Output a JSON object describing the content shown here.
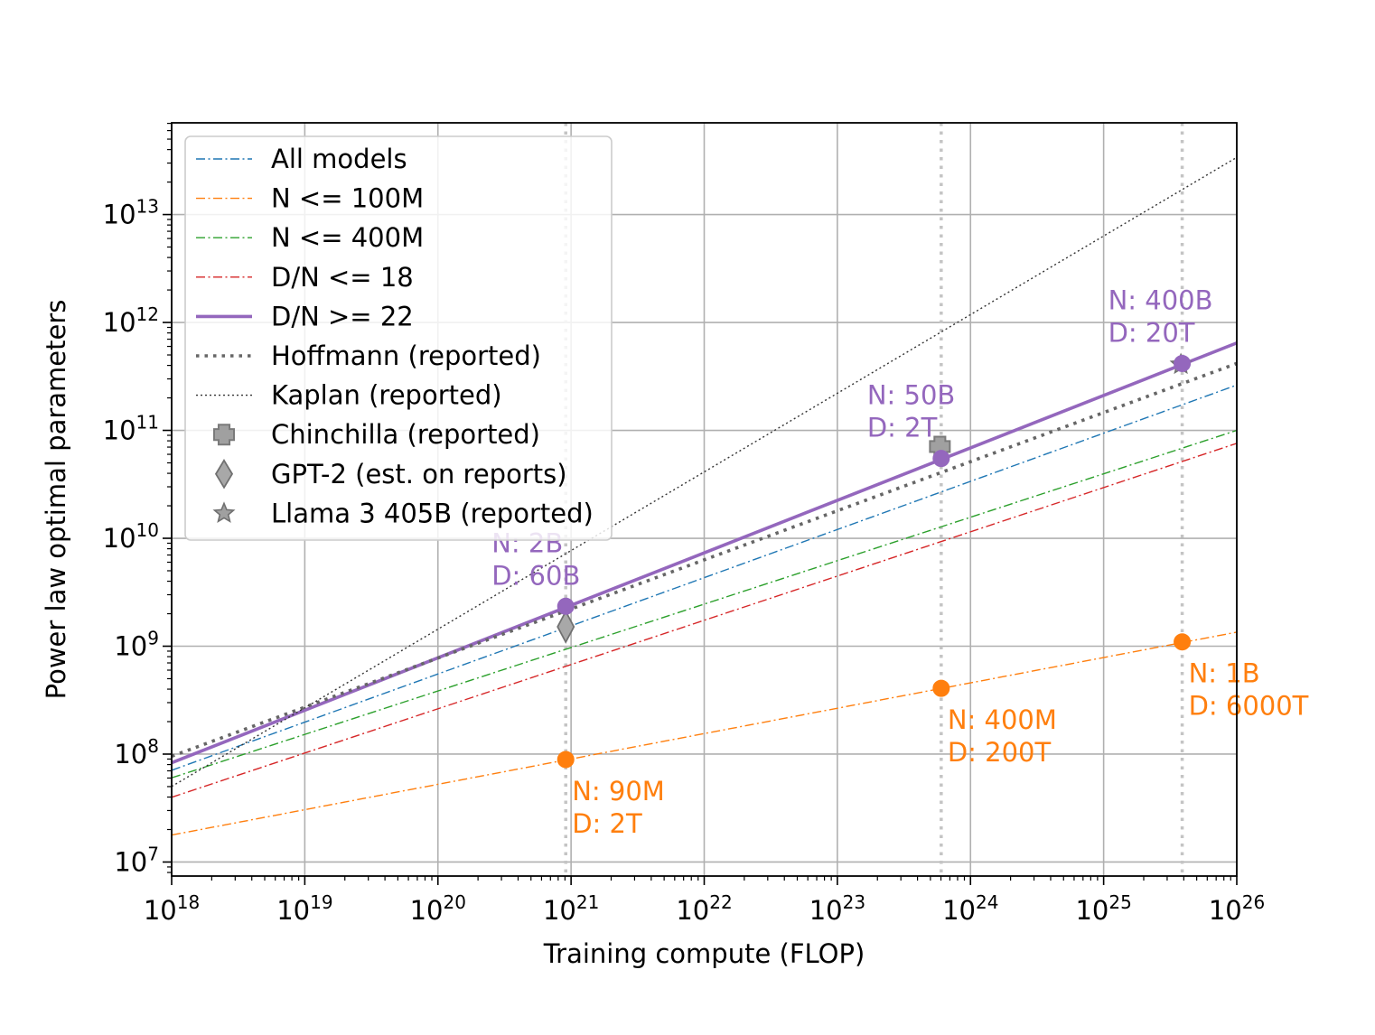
{
  "chart_data": {
    "type": "line",
    "scale": "log-log",
    "xlabel": "Training compute (FLOP)",
    "ylabel": "Power law optimal parameters",
    "xlim_exp": [
      18,
      26
    ],
    "ylim_exp": [
      6.87,
      13.85
    ],
    "x_ticks": [
      {
        "base": "10",
        "exp": "18",
        "value_exp": 18
      },
      {
        "base": "10",
        "exp": "19",
        "value_exp": 19
      },
      {
        "base": "10",
        "exp": "20",
        "value_exp": 20
      },
      {
        "base": "10",
        "exp": "21",
        "value_exp": 21
      },
      {
        "base": "10",
        "exp": "22",
        "value_exp": 22
      },
      {
        "base": "10",
        "exp": "23",
        "value_exp": 23
      },
      {
        "base": "10",
        "exp": "24",
        "value_exp": 24
      },
      {
        "base": "10",
        "exp": "25",
        "value_exp": 25
      },
      {
        "base": "10",
        "exp": "26",
        "value_exp": 26
      }
    ],
    "y_ticks": [
      {
        "base": "10",
        "exp": "7",
        "value_exp": 7
      },
      {
        "base": "10",
        "exp": "8",
        "value_exp": 8
      },
      {
        "base": "10",
        "exp": "9",
        "value_exp": 9
      },
      {
        "base": "10",
        "exp": "10",
        "value_exp": 10
      },
      {
        "base": "10",
        "exp": "11",
        "value_exp": 11
      },
      {
        "base": "10",
        "exp": "12",
        "value_exp": 12
      },
      {
        "base": "10",
        "exp": "13",
        "value_exp": 13
      }
    ],
    "grid": true,
    "legend_position": "top-left",
    "vertical_reference_lines_exp": [
      20.96,
      23.78,
      25.59
    ],
    "series": [
      {
        "name": "All models",
        "color": "#1f77b4",
        "style": "dashdot",
        "width": 1.4,
        "from": [
          18,
          7.85
        ],
        "to": [
          26,
          11.42
        ]
      },
      {
        "name": "N <= 100M",
        "color": "#ff7f0e",
        "style": "dashdot",
        "width": 1.4,
        "from": [
          18,
          7.25
        ],
        "to": [
          26,
          9.13
        ]
      },
      {
        "name": "N <= 400M",
        "color": "#2ca02c",
        "style": "dashdot",
        "width": 1.4,
        "from": [
          18,
          7.78
        ],
        "to": [
          26,
          11.0
        ]
      },
      {
        "name": "D/N <= 18",
        "color": "#d62728",
        "style": "dashdot",
        "width": 1.4,
        "from": [
          18,
          7.6
        ],
        "to": [
          26,
          10.88
        ]
      },
      {
        "name": "D/N >= 22",
        "color": "#9467bd",
        "style": "solid",
        "width": 3.6,
        "from": [
          18,
          7.92
        ],
        "to": [
          26,
          11.81
        ]
      },
      {
        "name": "Hoffmann (reported)",
        "color": "#666666",
        "style": "dotted-thick",
        "width": 3.6,
        "from": [
          18,
          7.98
        ],
        "to": [
          26,
          11.62
        ]
      },
      {
        "name": "Kaplan (reported)",
        "color": "#333333",
        "style": "dotted-thin",
        "width": 1.4,
        "from": [
          18,
          7.7
        ],
        "to": [
          26,
          13.53
        ]
      }
    ],
    "reference_points": [
      {
        "name": "Chinchilla (reported)",
        "marker": "plus",
        "x_exp": 23.77,
        "y_exp": 10.85
      },
      {
        "name": "GPT-2 (est. on reports)",
        "marker": "diamond",
        "x_exp": 20.96,
        "y_exp": 9.18
      },
      {
        "name": "Llama 3 405B (reported)",
        "marker": "star",
        "x_exp": 25.58,
        "y_exp": 11.61
      }
    ],
    "annotations": [
      {
        "series": "D/N >= 22",
        "color": "#9467bd",
        "x_exp": 20.96,
        "y_exp": 9.37,
        "line1": "N: 2B",
        "line2": "D: 60B",
        "placement": "above"
      },
      {
        "series": "D/N >= 22",
        "color": "#9467bd",
        "x_exp": 23.78,
        "y_exp": 10.74,
        "line1": "N: 50B",
        "line2": "D: 2T",
        "placement": "above"
      },
      {
        "series": "D/N >= 22",
        "color": "#9467bd",
        "x_exp": 25.59,
        "y_exp": 11.62,
        "line1": "N: 400B",
        "line2": "D: 20T",
        "placement": "above"
      },
      {
        "series": "N <= 100M",
        "color": "#ff7f0e",
        "x_exp": 20.96,
        "y_exp": 7.95,
        "line1": "N: 90M",
        "line2": "D: 2T",
        "placement": "below"
      },
      {
        "series": "N <= 100M",
        "color": "#ff7f0e",
        "x_exp": 23.78,
        "y_exp": 8.61,
        "line1": "N: 400M",
        "line2": "D: 200T",
        "placement": "below"
      },
      {
        "series": "N <= 100M",
        "color": "#ff7f0e",
        "x_exp": 25.59,
        "y_exp": 9.04,
        "line1": "N: 1B",
        "line2": "D: 6000T",
        "placement": "below"
      }
    ]
  }
}
